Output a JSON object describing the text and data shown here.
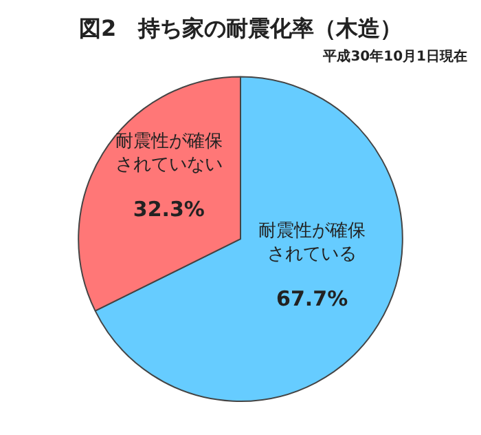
{
  "chart_data": {
    "type": "pie",
    "title": "図2　持ち家の耐震化率（木造）",
    "subtitle": "平成30年10月1日現在",
    "categories": [
      "耐震性が確保されている",
      "耐震性が確保されていない"
    ],
    "values": [
      67.7,
      32.3
    ],
    "value_labels": [
      "67.7%",
      "32.3%"
    ],
    "colors": [
      "#66ccff",
      "#ff7777"
    ]
  }
}
